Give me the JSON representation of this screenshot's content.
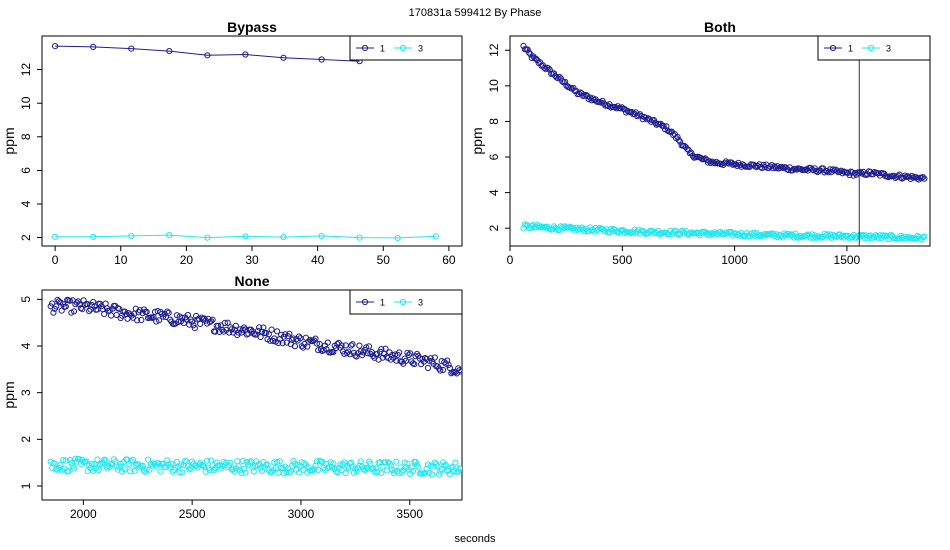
{
  "page_title": "170831a   599412   By Phase",
  "xlabel": "seconds",
  "colors": {
    "series1": "#1f1f8f",
    "series3": "#22e8f0",
    "axis": "#000000"
  },
  "chart_data": [
    {
      "type": "line",
      "title": "Bypass",
      "ylabel": "ppm",
      "xlim": [
        -2,
        62
      ],
      "ylim": [
        1.5,
        14.0
      ],
      "xticks": [
        0,
        10,
        20,
        30,
        40,
        50,
        60
      ],
      "yticks": [
        2,
        4,
        6,
        8,
        10,
        12
      ],
      "legend": {
        "position": "top-right",
        "entries": [
          "1",
          "3"
        ]
      },
      "series": [
        {
          "name": "1",
          "x": [
            0,
            5.8,
            11.6,
            17.4,
            23.2,
            29.0,
            34.8,
            40.6,
            46.4
          ],
          "y": [
            13.4,
            13.35,
            13.25,
            13.1,
            12.85,
            12.9,
            12.7,
            12.6,
            12.5
          ]
        },
        {
          "name": "3",
          "x": [
            0,
            5.8,
            11.6,
            17.4,
            23.2,
            29.0,
            34.8,
            40.6,
            46.4,
            52.2,
            58.0
          ],
          "y": [
            2.05,
            2.05,
            2.1,
            2.15,
            2.0,
            2.08,
            2.03,
            2.1,
            2.0,
            1.98,
            2.07
          ]
        }
      ]
    },
    {
      "type": "scatter",
      "title": "Both",
      "ylabel": "ppm",
      "xlim": [
        0,
        1870
      ],
      "ylim": [
        1.0,
        12.8
      ],
      "xticks": [
        0,
        500,
        1000,
        1500
      ],
      "yticks": [
        2,
        4,
        6,
        8,
        10,
        12
      ],
      "vline_x": 1555,
      "legend": {
        "position": "top-right",
        "entries": [
          "1",
          "3"
        ]
      },
      "series": [
        {
          "name": "1",
          "x_start": 60,
          "x_end": 1845,
          "count": 290,
          "knots_x": [
            60,
            100,
            200,
            300,
            400,
            500,
            600,
            700,
            750,
            800,
            850,
            900,
            1000,
            1100,
            1200,
            1300,
            1400,
            1500,
            1550,
            1600,
            1700,
            1845
          ],
          "knots_y": [
            12.2,
            11.6,
            10.6,
            9.6,
            9.1,
            8.7,
            8.2,
            7.6,
            7.0,
            6.2,
            5.9,
            5.7,
            5.6,
            5.5,
            5.4,
            5.3,
            5.25,
            5.1,
            5.05,
            5.1,
            4.95,
            4.8
          ],
          "jitter": 0.12
        },
        {
          "name": "3",
          "x_start": 60,
          "x_end": 1845,
          "count": 290,
          "knots_x": [
            60,
            300,
            600,
            900,
            1200,
            1500,
            1845
          ],
          "knots_y": [
            2.1,
            1.95,
            1.8,
            1.7,
            1.6,
            1.55,
            1.45
          ],
          "jitter": 0.12
        }
      ]
    },
    {
      "type": "scatter",
      "title": "None",
      "ylabel": "ppm",
      "xlim": [
        1810,
        3740
      ],
      "ylim": [
        0.7,
        5.2
      ],
      "xticks": [
        2000,
        2500,
        3000,
        3500
      ],
      "yticks": [
        1,
        2,
        3,
        4,
        5
      ],
      "legend": {
        "position": "top-right",
        "entries": [
          "1",
          "3"
        ]
      },
      "series": [
        {
          "name": "1",
          "x_start": 1850,
          "x_end": 3735,
          "count": 300,
          "knots_x": [
            1850,
            2000,
            2200,
            2400,
            2600,
            2800,
            3000,
            3200,
            3400,
            3600,
            3735
          ],
          "knots_y": [
            4.85,
            4.85,
            4.7,
            4.6,
            4.45,
            4.3,
            4.1,
            3.95,
            3.8,
            3.65,
            3.5
          ],
          "jitter": 0.14
        },
        {
          "name": "3",
          "x_start": 1850,
          "x_end": 3735,
          "count": 300,
          "knots_x": [
            1850,
            3735
          ],
          "knots_y": [
            1.45,
            1.38
          ],
          "jitter": 0.14
        }
      ]
    }
  ]
}
